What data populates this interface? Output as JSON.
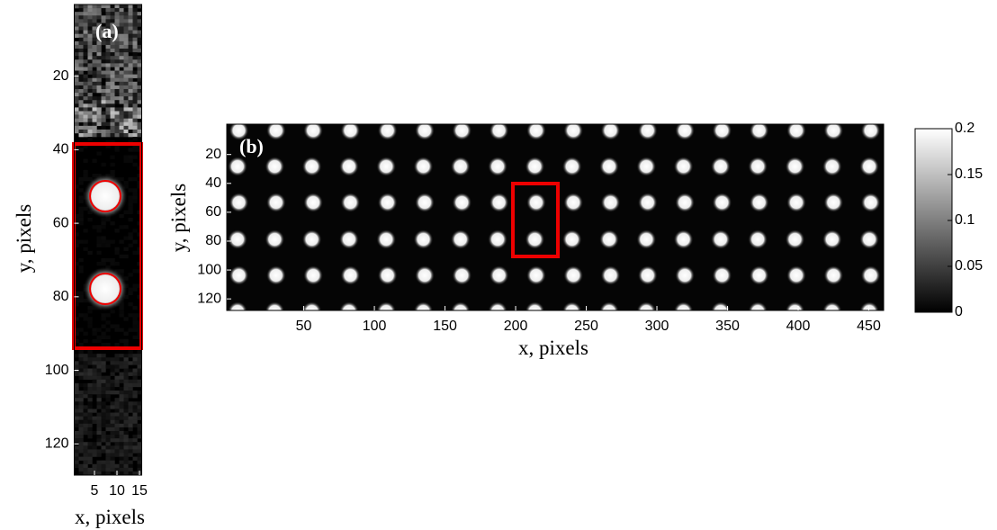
{
  "chart_data": [
    {
      "type": "image",
      "label": "(a)",
      "xlabel": "x, pixels",
      "ylabel": "y, pixels",
      "xlim": [
        0.5,
        15.5
      ],
      "xticks": [
        5,
        10,
        15
      ],
      "ylim": [
        0.5,
        128.5
      ],
      "yticks": [
        20,
        40,
        60,
        80,
        100,
        120
      ]
    },
    {
      "type": "image",
      "label": "(b)",
      "xlabel": "x, pixels",
      "ylabel": "y, pixels",
      "xlim": [
        -4.5,
        460.5
      ],
      "xticks": [
        50,
        100,
        150,
        200,
        250,
        300,
        350,
        400,
        450
      ],
      "ylim": [
        -1,
        128
      ],
      "yticks": [
        20,
        40,
        60,
        80,
        100,
        120
      ],
      "colorbar": {
        "clim": [
          0,
          0.2
        ],
        "ticks": [
          0,
          0.05,
          0.1,
          0.15,
          0.2
        ]
      }
    }
  ]
}
